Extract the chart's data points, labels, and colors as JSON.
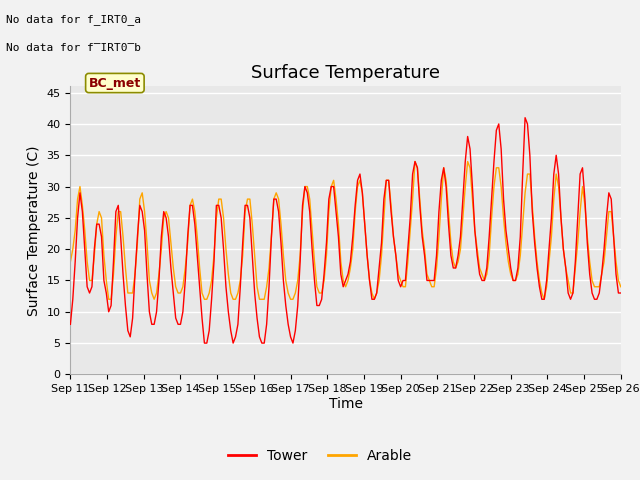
{
  "title": "Surface Temperature",
  "xlabel": "Time",
  "ylabel": "Surface Temperature (C)",
  "ylim": [
    0,
    46
  ],
  "yticks": [
    0,
    5,
    10,
    15,
    20,
    25,
    30,
    35,
    40,
    45
  ],
  "text_no_data_1": "No data for f_IRT0_a",
  "text_no_data_2": "No data for f̅IRT0̅b",
  "annotation_box": "BC_met",
  "line_tower_color": "#FF0000",
  "line_arable_color": "#FFA500",
  "plot_bg_color": "#E8E8E8",
  "fig_bg_color": "#F2F2F2",
  "legend_tower": "Tower",
  "legend_arable": "Arable",
  "title_fontsize": 13,
  "axis_label_fontsize": 10,
  "tick_fontsize": 8,
  "x_labels": [
    "Sep 11",
    "Sep 12",
    "Sep 13",
    "Sep 14",
    "Sep 15",
    "Sep 16",
    "Sep 17",
    "Sep 18",
    "Sep 19",
    "Sep 20",
    "Sep 21",
    "Sep 22",
    "Sep 23",
    "Sep 24",
    "Sep 25",
    "Sep 26"
  ],
  "tower_data": [
    8,
    12,
    18,
    25,
    29,
    26,
    20,
    14,
    13,
    14,
    20,
    24,
    24,
    22,
    15,
    13,
    10,
    11,
    18,
    26,
    27,
    22,
    16,
    11,
    7,
    6,
    9,
    16,
    22,
    27,
    26,
    23,
    16,
    10,
    8,
    8,
    10,
    15,
    22,
    26,
    25,
    22,
    17,
    13,
    9,
    8,
    8,
    10,
    15,
    22,
    27,
    27,
    24,
    19,
    14,
    9,
    5,
    5,
    7,
    12,
    18,
    27,
    27,
    25,
    20,
    14,
    10,
    7,
    5,
    6,
    8,
    14,
    21,
    27,
    27,
    25,
    19,
    13,
    9,
    6,
    5,
    5,
    8,
    14,
    22,
    28,
    28,
    26,
    21,
    15,
    11,
    8,
    6,
    5,
    7,
    11,
    18,
    27,
    30,
    29,
    26,
    20,
    15,
    11,
    11,
    12,
    16,
    21,
    28,
    30,
    30,
    26,
    22,
    16,
    14,
    15,
    16,
    18,
    22,
    27,
    31,
    32,
    29,
    24,
    19,
    15,
    12,
    12,
    13,
    17,
    21,
    28,
    31,
    31,
    26,
    22,
    19,
    15,
    14,
    15,
    15,
    20,
    25,
    32,
    34,
    33,
    27,
    22,
    19,
    15,
    15,
    15,
    15,
    19,
    26,
    31,
    33,
    30,
    24,
    19,
    17,
    17,
    19,
    22,
    28,
    34,
    38,
    36,
    30,
    23,
    19,
    16,
    15,
    15,
    17,
    22,
    28,
    34,
    39,
    40,
    36,
    28,
    23,
    20,
    17,
    15,
    15,
    17,
    22,
    32,
    41,
    40,
    35,
    26,
    21,
    17,
    14,
    12,
    12,
    15,
    20,
    25,
    32,
    35,
    32,
    25,
    20,
    17,
    13,
    12,
    13,
    18,
    25,
    32,
    33,
    28,
    21,
    16,
    13,
    12,
    12,
    13,
    16,
    20,
    25,
    29,
    28,
    22,
    16,
    13,
    13
  ],
  "arable_data": [
    18,
    20,
    23,
    28,
    30,
    27,
    23,
    18,
    15,
    15,
    19,
    24,
    26,
    25,
    19,
    15,
    12,
    12,
    16,
    22,
    26,
    26,
    22,
    17,
    13,
    13,
    13,
    16,
    21,
    28,
    29,
    26,
    21,
    15,
    13,
    12,
    13,
    16,
    20,
    25,
    26,
    25,
    21,
    17,
    14,
    13,
    13,
    14,
    17,
    21,
    27,
    28,
    26,
    22,
    17,
    13,
    12,
    12,
    13,
    15,
    19,
    25,
    28,
    28,
    25,
    20,
    16,
    13,
    12,
    12,
    13,
    15,
    19,
    26,
    28,
    28,
    24,
    19,
    14,
    12,
    12,
    12,
    14,
    17,
    22,
    28,
    29,
    28,
    24,
    19,
    15,
    13,
    12,
    12,
    13,
    15,
    19,
    26,
    30,
    30,
    28,
    23,
    18,
    14,
    13,
    13,
    15,
    19,
    26,
    30,
    31,
    28,
    24,
    18,
    15,
    14,
    15,
    17,
    20,
    26,
    30,
    31,
    29,
    24,
    19,
    15,
    13,
    12,
    13,
    15,
    19,
    25,
    31,
    31,
    27,
    22,
    19,
    16,
    15,
    14,
    14,
    18,
    23,
    28,
    34,
    33,
    28,
    23,
    20,
    16,
    15,
    14,
    14,
    17,
    22,
    28,
    33,
    31,
    26,
    21,
    18,
    17,
    18,
    20,
    25,
    30,
    34,
    33,
    28,
    23,
    20,
    17,
    16,
    15,
    16,
    19,
    25,
    30,
    33,
    33,
    30,
    25,
    21,
    18,
    16,
    15,
    15,
    16,
    19,
    24,
    29,
    32,
    32,
    27,
    22,
    18,
    15,
    13,
    12,
    14,
    18,
    22,
    28,
    32,
    30,
    25,
    20,
    17,
    15,
    13,
    13,
    17,
    21,
    26,
    30,
    27,
    22,
    18,
    15,
    14,
    14,
    14,
    16,
    18,
    22,
    26,
    26,
    22,
    18,
    15,
    14
  ]
}
